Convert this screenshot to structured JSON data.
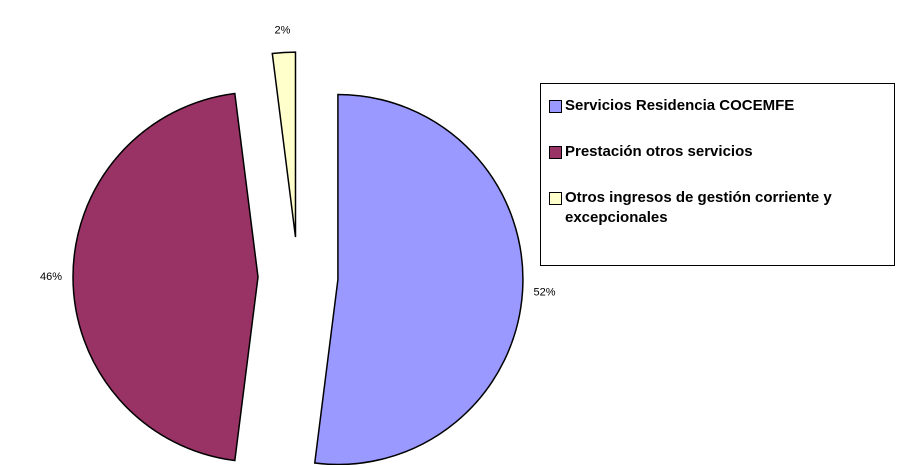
{
  "chart_data": {
    "type": "pie",
    "categories": [
      "Servicios Residencia COCEMFE",
      "Prestación otros servicios",
      "Otros ingresos de gestión corriente y excepcionales"
    ],
    "values": [
      52,
      46,
      2
    ],
    "value_labels": [
      "52%",
      "46%",
      "2%"
    ],
    "colors": [
      "#9999ff",
      "#993366",
      "#ffffcc"
    ],
    "legend": "right"
  }
}
